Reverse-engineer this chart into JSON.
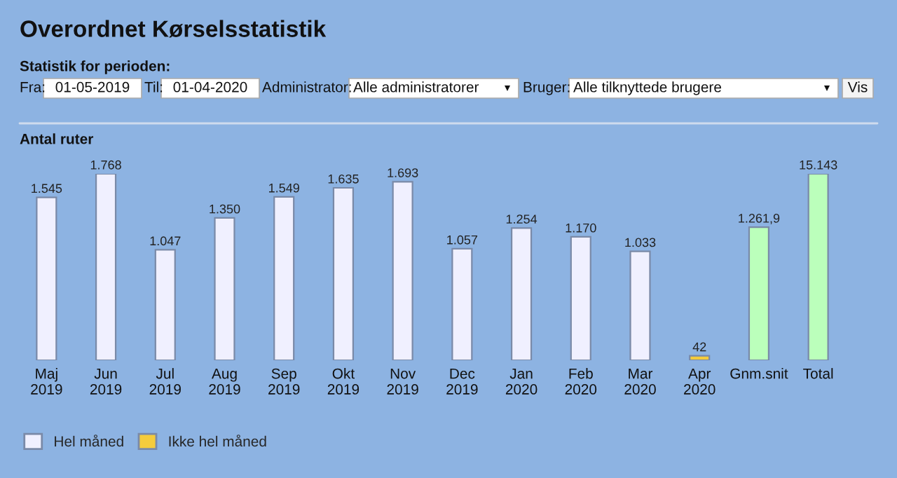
{
  "chart_data": {
    "type": "bar",
    "title": "Overordnet Kørselsstatistik",
    "subtitle": "Statistik for perioden:",
    "annotations": [
      "Fra:",
      "01-05-2019",
      "Til:",
      "01-04-2020",
      "Administrator:",
      "Alle administratorer",
      "Bruger:",
      "Alle tilknyttede brugere",
      "Vis"
    ],
    "ylabel": "Antal ruter",
    "categories": [
      "Maj\n2019",
      "Jun\n2019",
      "Jul\n2019",
      "Aug\n2019",
      "Sep\n2019",
      "Okt\n2019",
      "Nov\n2019",
      "Dec\n2019",
      "Jan\n2020",
      "Feb\n2020",
      "Mar\n2020",
      "Apr\n2020",
      "Gnm.snit",
      "Total"
    ],
    "series": [
      {
        "name": "Hel måned",
        "color": "#f0f0ff",
        "values": [
          1545,
          1768,
          1047,
          1350,
          1549,
          1635,
          1693,
          1057,
          1254,
          1170,
          1033,
          null,
          null,
          null
        ],
        "value_labels": [
          "1.545",
          "1.768",
          "1.047",
          "1.350",
          "1.549",
          "1.635",
          "1.693",
          "1.057",
          "1.254",
          "1.170",
          "1.033",
          null,
          null,
          null
        ]
      },
      {
        "name": "Ikke hel måned",
        "color": "#f5cc3c",
        "values": [
          null,
          null,
          null,
          null,
          null,
          null,
          null,
          null,
          null,
          null,
          null,
          42,
          null,
          null
        ],
        "value_labels": [
          null,
          null,
          null,
          null,
          null,
          null,
          null,
          null,
          null,
          null,
          null,
          "42",
          null,
          null
        ]
      },
      {
        "color": "#bbffbb",
        "values": [
          null,
          null,
          null,
          null,
          null,
          null,
          null,
          null,
          null,
          null,
          null,
          null,
          1261.9,
          null
        ],
        "value_labels": [
          null,
          null,
          null,
          null,
          null,
          null,
          null,
          null,
          null,
          null,
          null,
          null,
          "1.261,9",
          null
        ]
      },
      {
        "color": "#bbffbb",
        "axis": "y2",
        "values": [
          null,
          null,
          null,
          null,
          null,
          null,
          null,
          null,
          null,
          null,
          null,
          null,
          null,
          15143
        ],
        "value_labels": [
          null,
          null,
          null,
          null,
          null,
          null,
          null,
          null,
          null,
          null,
          null,
          null,
          null,
          "15.143"
        ]
      }
    ],
    "ylim": [
      0,
      1768
    ],
    "y2lim": [
      0,
      15143
    ],
    "tick_labels": "x",
    "grid": false,
    "legend": "bottom left"
  }
}
